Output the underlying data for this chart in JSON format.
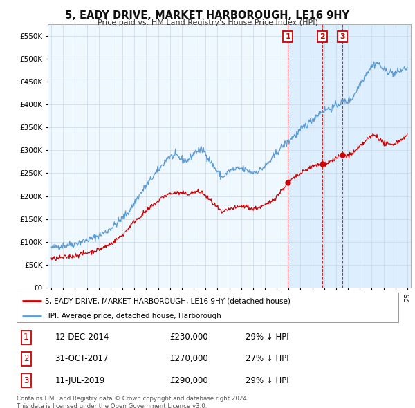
{
  "title": "5, EADY DRIVE, MARKET HARBOROUGH, LE16 9HY",
  "subtitle": "Price paid vs. HM Land Registry's House Price Index (HPI)",
  "yticks": [
    0,
    50000,
    100000,
    150000,
    200000,
    250000,
    300000,
    350000,
    400000,
    450000,
    500000,
    550000
  ],
  "ylim": [
    0,
    575000
  ],
  "xlim_left": 1994.7,
  "xlim_right": 2025.3,
  "hpi_color": "#5b9bd5",
  "sale_color": "#cc0000",
  "shade_color": "#ddeeff",
  "transactions": [
    {
      "date_num": 2014.95,
      "price": 230000,
      "label": "1"
    },
    {
      "date_num": 2017.83,
      "price": 270000,
      "label": "2"
    },
    {
      "date_num": 2019.53,
      "price": 290000,
      "label": "3"
    }
  ],
  "table_rows": [
    {
      "num": "1",
      "date": "12-DEC-2014",
      "price": "£230,000",
      "note": "29% ↓ HPI"
    },
    {
      "num": "2",
      "date": "31-OCT-2017",
      "price": "£270,000",
      "note": "27% ↓ HPI"
    },
    {
      "num": "3",
      "date": "11-JUL-2019",
      "price": "£290,000",
      "note": "29% ↓ HPI"
    }
  ],
  "legend_entries": [
    "5, EADY DRIVE, MARKET HARBOROUGH, LE16 9HY (detached house)",
    "HPI: Average price, detached house, Harborough"
  ],
  "footer": "Contains HM Land Registry data © Crown copyright and database right 2024.\nThis data is licensed under the Open Government Licence v3.0.",
  "background_color": "#ffffff",
  "grid_color": "#c8d8e8",
  "chart_bg": "#f0f8ff"
}
